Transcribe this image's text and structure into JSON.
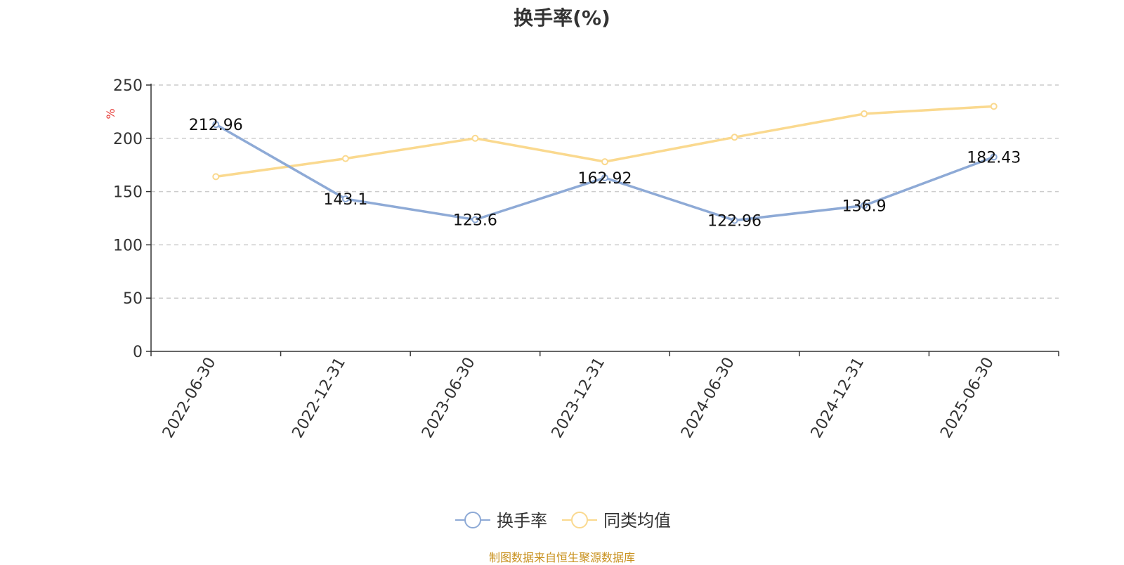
{
  "title": "换手率(%)",
  "footer": "制图数据来自恒生聚源数据库",
  "chart_data": {
    "type": "line",
    "categories": [
      "2022-06-30",
      "2022-12-31",
      "2023-06-30",
      "2023-12-31",
      "2024-06-30",
      "2024-12-31",
      "2025-06-30"
    ],
    "ylabel": "%",
    "ylim": [
      0,
      250
    ],
    "yticks": [
      0,
      50,
      100,
      150,
      200,
      250
    ],
    "grid": true,
    "legend_position": "bottom",
    "series": [
      {
        "name": "换手率",
        "color": "#8eaad6",
        "values": [
          212.96,
          143.1,
          123.6,
          162.92,
          122.96,
          136.9,
          182.43
        ],
        "labels": [
          "212.96",
          "143.1",
          "123.6",
          "162.92",
          "122.96",
          "136.9",
          "182.43"
        ]
      },
      {
        "name": "同类均值",
        "color": "#fad98f",
        "values": [
          164,
          181,
          200,
          178,
          201,
          223,
          230
        ]
      }
    ]
  }
}
